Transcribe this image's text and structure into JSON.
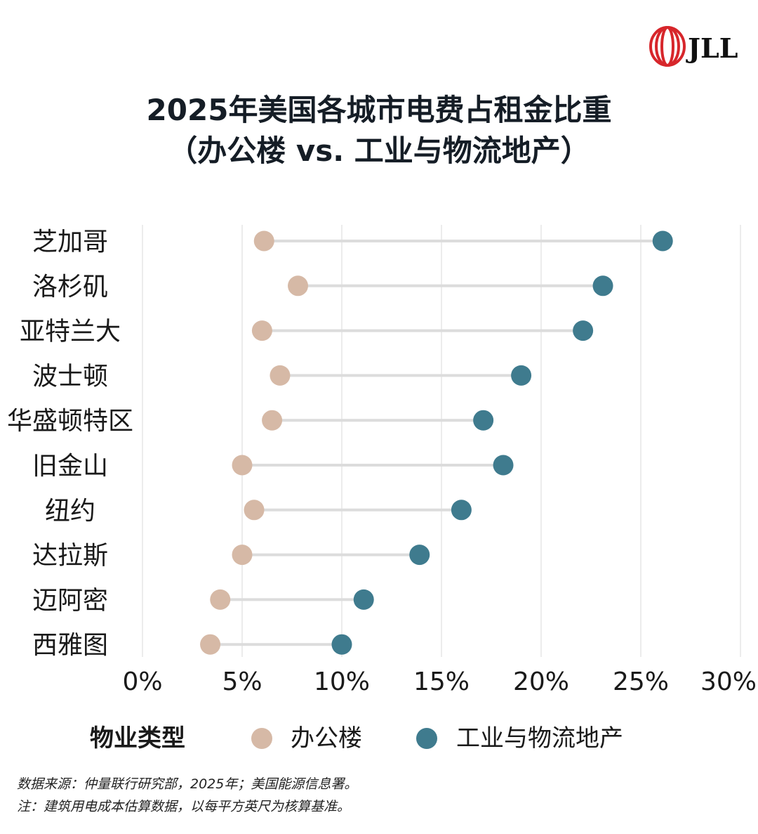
{
  "logo": {
    "text": "JLL",
    "color": "#d7262b"
  },
  "title_line1": "2025年美国各城市电费占租金比重",
  "title_line2": "（办公楼 vs. 工业与物流地产）",
  "chart_data": {
    "type": "dumbbell",
    "categories": [
      "芝加哥",
      "洛杉矶",
      "亚特兰大",
      "波士顿",
      "华盛顿特区",
      "旧金山",
      "纽约",
      "达拉斯",
      "迈阿密",
      "西雅图"
    ],
    "series": [
      {
        "name": "办公楼",
        "color": "#d6b9a6",
        "values": [
          6.1,
          7.8,
          6.0,
          6.9,
          6.5,
          5.0,
          5.6,
          5.0,
          3.9,
          3.4
        ]
      },
      {
        "name": "工业与物流地产",
        "color": "#3f7b8e",
        "values": [
          26.1,
          23.1,
          22.1,
          19.0,
          17.1,
          18.1,
          16.0,
          13.9,
          11.1,
          10.0
        ]
      }
    ],
    "xlim": [
      0,
      30
    ],
    "xticks": [
      "0%",
      "5%",
      "10%",
      "15%",
      "20%",
      "25%",
      "30%"
    ],
    "xtick_values": [
      0,
      5,
      10,
      15,
      20,
      25,
      30
    ],
    "grid": true,
    "legend_title": "物业类型",
    "legend_placement": "bottom"
  },
  "notes": {
    "source": "数据来源：仲量联行研究部，2025年；美国能源信息署。",
    "note": "注：建筑用电成本估算数据，以每平方英尺为核算基准。"
  }
}
